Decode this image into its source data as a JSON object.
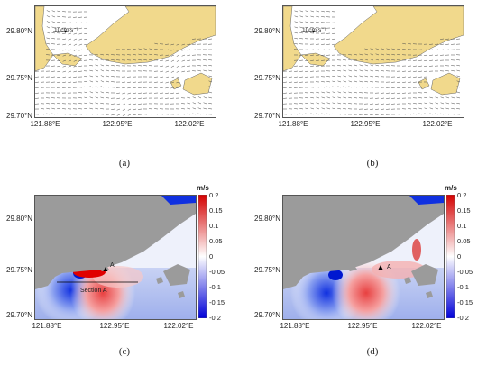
{
  "colors": {
    "land_tan": "#f1d98c",
    "land_gray": "#9b9b9b",
    "arrow": "#4a4a4a",
    "pos_max": "#d40000",
    "neg_max": "#0000d8",
    "zero": "#ffffff"
  },
  "axes": {
    "y_ticks": [
      "29.80°N",
      "29.75°N",
      "29.70°N"
    ],
    "x_ticks": [
      "121.88°E",
      "122.95°E",
      "122.02°E"
    ]
  },
  "panels": [
    {
      "id": "a",
      "caption": "(a)",
      "kind": "vector",
      "scale_label": "10cm·s⁻¹"
    },
    {
      "id": "b",
      "caption": "(b)",
      "kind": "vector",
      "scale_label": "10cm·s⁻¹"
    },
    {
      "id": "c",
      "caption": "(c)",
      "kind": "contour",
      "point_label": "A",
      "section_label": "Section A"
    },
    {
      "id": "d",
      "caption": "(d)",
      "kind": "contour",
      "point_label": "A"
    }
  ],
  "colorbar": {
    "unit": "m/s",
    "ticks": [
      "0.2",
      "0.15",
      "0.1",
      "0.05",
      "0",
      "-0.05",
      "-0.1",
      "-0.15",
      "-0.2"
    ]
  }
}
